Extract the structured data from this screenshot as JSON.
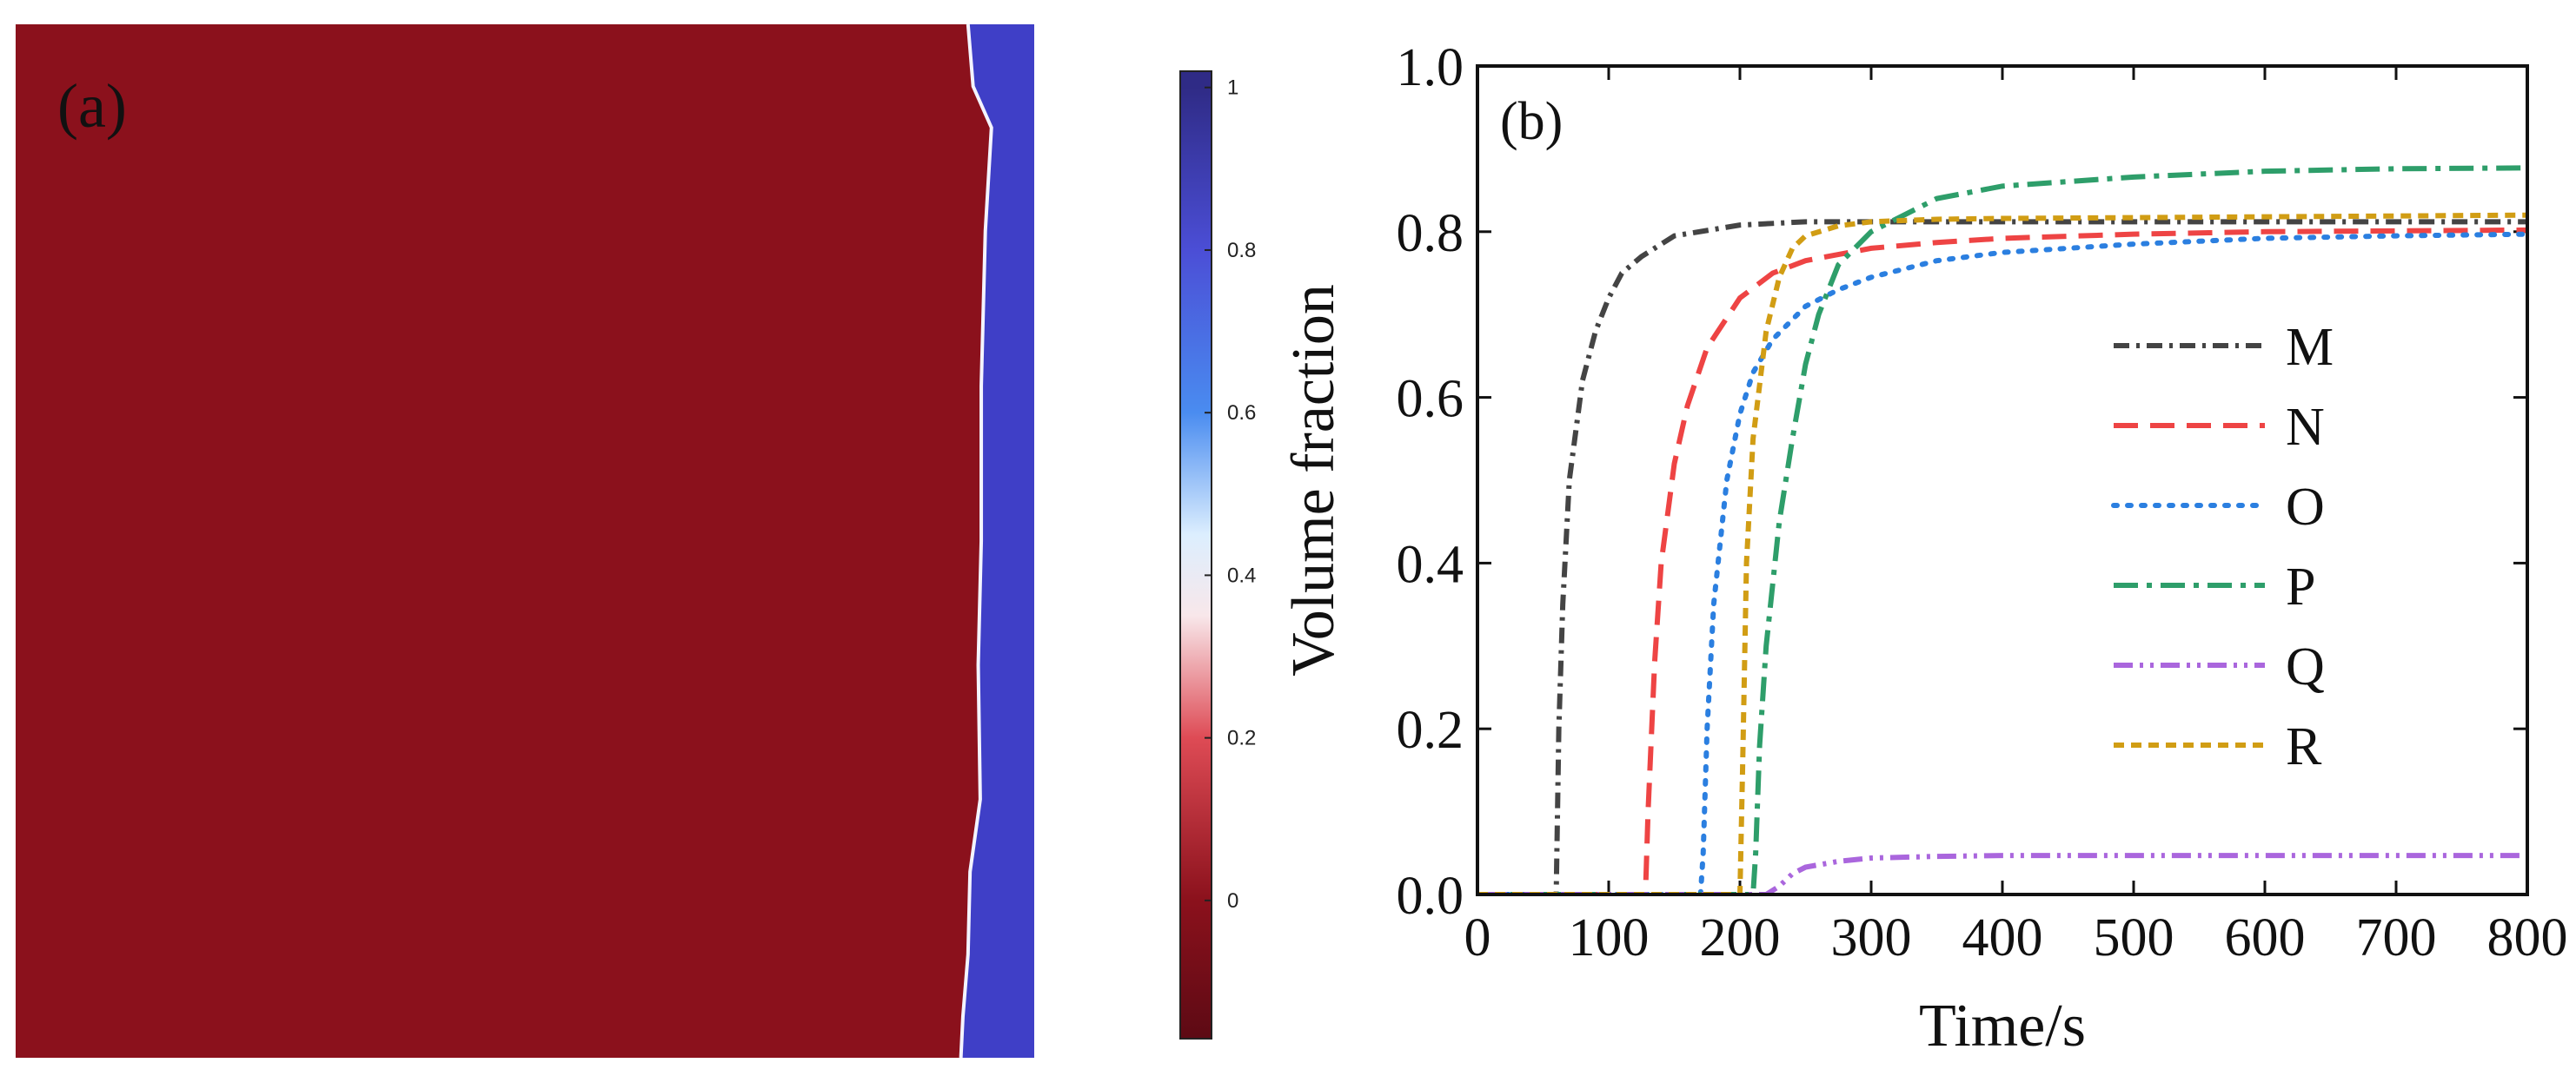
{
  "figure": {
    "panel_a_label": "(a)",
    "panel_b_label": "(b)",
    "colors": {
      "background": "#ffffff",
      "field_red": "#8b111c",
      "field_blue": "#3f3fc7",
      "axis": "#111111"
    }
  },
  "chart_data": [
    {
      "id": "panel-a",
      "type": "heatmap",
      "title": "(a)",
      "description": "phase-field map with a red region on the left and a blue strip on the right",
      "colorbar": {
        "ticks": [
          1,
          0.8,
          0.6,
          0.4,
          0.2,
          0
        ],
        "tick_labels": [
          "1",
          "0.8",
          "0.6",
          "0.4",
          "0.2",
          "0"
        ],
        "range": [
          -0.17,
          1.02
        ],
        "gradient_stops": [
          {
            "value": 1.0,
            "color": "#2f2b86"
          },
          {
            "value": 0.8,
            "color": "#4b4ed6"
          },
          {
            "value": 0.6,
            "color": "#4a8cf0"
          },
          {
            "value": 0.45,
            "color": "#dceefe"
          },
          {
            "value": 0.35,
            "color": "#f8e7ea"
          },
          {
            "value": 0.2,
            "color": "#de4b55"
          },
          {
            "value": 0.0,
            "color": "#8b111c"
          },
          {
            "value": -0.17,
            "color": "#5d0a14"
          }
        ]
      },
      "interface_profile": {
        "note": "x positions of the boundary as a fraction of the field width, listed from top to bottom",
        "y_fraction": [
          0.0,
          0.06,
          0.1,
          0.2,
          0.35,
          0.5,
          0.62,
          0.75,
          0.82,
          0.9,
          0.96,
          1.0
        ],
        "x_fraction": [
          0.935,
          0.94,
          0.958,
          0.952,
          0.948,
          0.948,
          0.945,
          0.947,
          0.937,
          0.935,
          0.93,
          0.928
        ]
      }
    },
    {
      "id": "panel-b",
      "type": "line",
      "title": "(b)",
      "xlabel": "Time/s",
      "ylabel": "Volume fraction",
      "xlim": [
        0,
        800
      ],
      "ylim": [
        0,
        1.0
      ],
      "xticks": [
        0,
        100,
        200,
        300,
        400,
        500,
        600,
        700,
        800
      ],
      "yticks": [
        0.0,
        0.2,
        0.4,
        0.6,
        0.8,
        1.0
      ],
      "xtick_labels": [
        "0",
        "100",
        "200",
        "300",
        "400",
        "500",
        "600",
        "700",
        "800"
      ],
      "ytick_labels": [
        "0.0",
        "0.2",
        "0.4",
        "0.6",
        "0.8",
        "1.0"
      ],
      "legend_position": "right",
      "series": [
        {
          "name": "M",
          "color": "#444444",
          "dash": "dashdot",
          "x": [
            0,
            60,
            62,
            65,
            70,
            80,
            90,
            100,
            110,
            125,
            150,
            200,
            250,
            300,
            400,
            500,
            600,
            700,
            800
          ],
          "y": [
            0,
            0,
            0.2,
            0.35,
            0.5,
            0.62,
            0.68,
            0.72,
            0.75,
            0.77,
            0.795,
            0.808,
            0.812,
            0.812,
            0.812,
            0.812,
            0.812,
            0.812,
            0.812
          ]
        },
        {
          "name": "N",
          "color": "#ee4444",
          "dash": "dashed",
          "x": [
            0,
            128,
            130,
            135,
            140,
            150,
            160,
            175,
            200,
            225,
            250,
            300,
            350,
            400,
            500,
            600,
            700,
            800
          ],
          "y": [
            0,
            0,
            0.1,
            0.28,
            0.4,
            0.52,
            0.59,
            0.66,
            0.72,
            0.75,
            0.765,
            0.78,
            0.787,
            0.792,
            0.797,
            0.8,
            0.801,
            0.802
          ]
        },
        {
          "name": "O",
          "color": "#2b7fe0",
          "dash": "dotted",
          "x": [
            0,
            170,
            172,
            175,
            180,
            190,
            200,
            210,
            225,
            250,
            275,
            300,
            350,
            400,
            500,
            600,
            700,
            800
          ],
          "y": [
            0,
            0,
            0.05,
            0.2,
            0.35,
            0.5,
            0.58,
            0.63,
            0.67,
            0.71,
            0.73,
            0.745,
            0.765,
            0.775,
            0.785,
            0.792,
            0.795,
            0.797
          ]
        },
        {
          "name": "P",
          "color": "#2e9e6a",
          "dash": "dashdot-long",
          "x": [
            0,
            210,
            212,
            215,
            220,
            230,
            240,
            250,
            260,
            275,
            300,
            350,
            400,
            500,
            600,
            700,
            800
          ],
          "y": [
            0,
            0,
            0.05,
            0.18,
            0.3,
            0.45,
            0.55,
            0.64,
            0.7,
            0.76,
            0.8,
            0.84,
            0.855,
            0.866,
            0.873,
            0.876,
            0.877
          ]
        },
        {
          "name": "Q",
          "color": "#aa66dd",
          "dash": "dashdotdot",
          "x": [
            0,
            220,
            230,
            240,
            250,
            275,
            300,
            350,
            400,
            500,
            600,
            700,
            800
          ],
          "y": [
            0,
            0,
            0.01,
            0.025,
            0.033,
            0.04,
            0.044,
            0.046,
            0.047,
            0.047,
            0.047,
            0.047,
            0.047
          ]
        },
        {
          "name": "R",
          "color": "#d19d14",
          "dash": "short-dashed",
          "x": [
            0,
            200,
            202,
            205,
            210,
            220,
            230,
            240,
            250,
            275,
            300,
            350,
            400,
            500,
            600,
            700,
            800
          ],
          "y": [
            0,
            0,
            0.15,
            0.4,
            0.55,
            0.68,
            0.745,
            0.78,
            0.795,
            0.807,
            0.812,
            0.815,
            0.816,
            0.817,
            0.818,
            0.819,
            0.82
          ]
        }
      ]
    }
  ]
}
